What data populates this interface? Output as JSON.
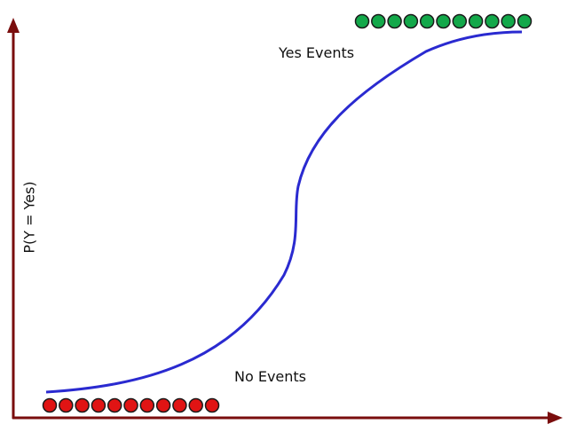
{
  "diagram": {
    "ylabel": "P(Y = Yes)",
    "yes_label": "Yes Events",
    "no_label": "No Events",
    "yes_event_count": 11,
    "no_event_count": 11,
    "colors": {
      "axis": "#7a0d0d",
      "curve": "#2a2ad0",
      "yes_dot_fill": "#13a84a",
      "no_dot_fill": "#e01414",
      "dot_stroke": "#1a1a1a"
    }
  }
}
